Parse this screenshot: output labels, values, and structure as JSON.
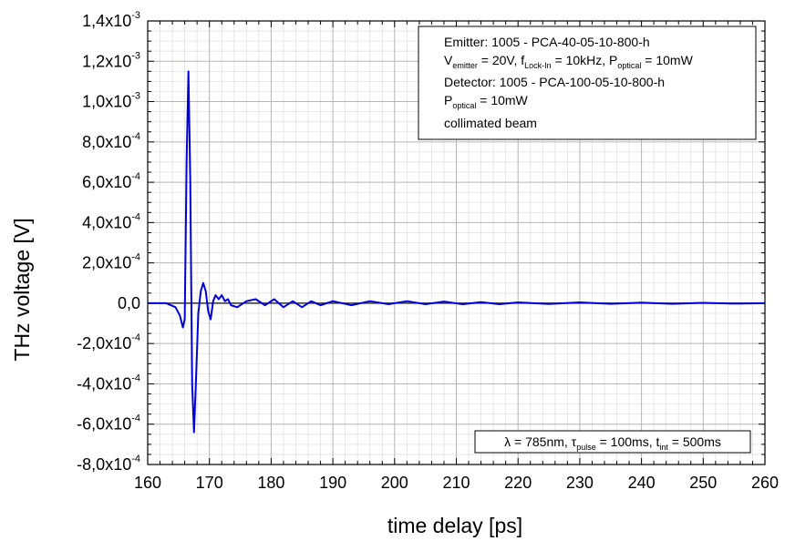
{
  "chart_data": {
    "type": "line",
    "xlabel": "time delay [ps]",
    "ylabel": "THz voltage [V]",
    "xlim": [
      160,
      260
    ],
    "ylim": [
      -0.0008,
      0.0014
    ],
    "x_ticks": [
      "160",
      "170",
      "180",
      "190",
      "200",
      "210",
      "220",
      "230",
      "240",
      "250",
      "260"
    ],
    "y_ticks": [
      {
        "mantissa": "1,4x10",
        "exp": "-3",
        "value": 0.0014
      },
      {
        "mantissa": "1,2x10",
        "exp": "-3",
        "value": 0.0012
      },
      {
        "mantissa": "1,0x10",
        "exp": "-3",
        "value": 0.001
      },
      {
        "mantissa": "8,0x10",
        "exp": "-4",
        "value": 0.0008
      },
      {
        "mantissa": "6,0x10",
        "exp": "-4",
        "value": 0.0006
      },
      {
        "mantissa": "4,0x10",
        "exp": "-4",
        "value": 0.0004
      },
      {
        "mantissa": "2,0x10",
        "exp": "-4",
        "value": 0.0002
      },
      {
        "mantissa": "0,0",
        "exp": "",
        "value": 0.0
      },
      {
        "mantissa": "-2,0x10",
        "exp": "-4",
        "value": -0.0002
      },
      {
        "mantissa": "-4,0x10",
        "exp": "-4",
        "value": -0.0004
      },
      {
        "mantissa": "-6,0x10",
        "exp": "-4",
        "value": -0.0006
      },
      {
        "mantissa": "-8,0x10",
        "exp": "-4",
        "value": -0.0008
      }
    ],
    "grid": true,
    "legend_position": "top-right",
    "line_color": "#0000dd",
    "series": [
      {
        "x": [
          160,
          163,
          164.5,
          165.2,
          165.7,
          166.0,
          166.3,
          166.6,
          166.9,
          167.2,
          167.5,
          167.8,
          168.2,
          168.6,
          169.0,
          169.4,
          169.8,
          170.2,
          170.6,
          171.0,
          171.5,
          172.0,
          172.5,
          173.0,
          173.5,
          174.5,
          176.0,
          177.5,
          179.0,
          180.5,
          182.0,
          183.5,
          185.0,
          186.5,
          188.0,
          190.0,
          193.0,
          196.0,
          199.0,
          202.0,
          205.0,
          208.0,
          211.0,
          214.0,
          217.0,
          220.0,
          225.0,
          230.0,
          235.0,
          240.0,
          245.0,
          250.0,
          255.0,
          260.0
        ],
        "y": [
          0,
          0,
          -2e-05,
          -6e-05,
          -0.00012,
          -8e-05,
          0.0007,
          0.00115,
          0.0006,
          -0.0004,
          -0.00064,
          -0.0004,
          -5e-05,
          6e-05,
          0.0001,
          6e-05,
          -4e-05,
          -8e-05,
          1e-05,
          4e-05,
          2e-05,
          4e-05,
          1e-05,
          2e-05,
          -1e-05,
          -2e-05,
          1e-05,
          2e-05,
          -1e-05,
          2e-05,
          -2e-05,
          1e-05,
          -2e-05,
          1e-05,
          -1e-05,
          1e-05,
          -1e-05,
          1e-05,
          -5e-06,
          1e-05,
          -5e-06,
          8e-06,
          -5e-06,
          5e-06,
          -5e-06,
          4e-06,
          -4e-06,
          4e-06,
          -3e-06,
          3e-06,
          -3e-06,
          2e-06,
          -2e-06,
          0.0
        ]
      }
    ],
    "legend": {
      "line1": "Emitter: 1005 - PCA-40-05-10-800-h",
      "line2_a": "V",
      "line2_a_sub": "emitter",
      "line2_b": " = 20V, f",
      "line2_b_sub": "Lock-In",
      "line2_c": " = 10kHz, P",
      "line2_c_sub": "optical",
      "line2_d": " = 10mW",
      "line3": "Detector: 1005 - PCA-100-05-10-800-h",
      "line4_a": "P",
      "line4_a_sub": "optical",
      "line4_b": " = 10mW",
      "line5": "collimated beam"
    },
    "annotation": {
      "a": "λ = 785nm, τ",
      "a_sub": "pulse",
      "b": " = 100ms, t",
      "b_sub": "int",
      "c": " = 500ms"
    }
  }
}
